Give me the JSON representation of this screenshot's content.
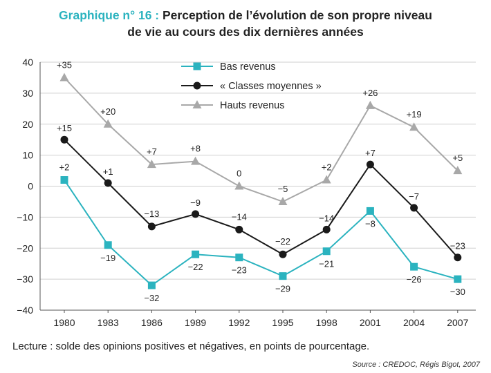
{
  "title": {
    "lead": "Graphique n° 16 :",
    "main": "Perception de l’évolution de son propre niveau",
    "line2": "de vie au cours des dix dernières années"
  },
  "note": "Lecture : solde des opinions positives et négatives, en points de pourcentage.",
  "source": "Source : CREDOC, Régis Bigot, 2007",
  "colors": {
    "bas": "#2bb3bf",
    "moyennes": "#1a1a1a",
    "hauts": "#a8a8a8",
    "grid": "#cfcfcf"
  },
  "chart_data": {
    "type": "line",
    "x": [
      "1980",
      "1983",
      "1986",
      "1989",
      "1992",
      "1995",
      "1998",
      "2001",
      "2004",
      "2007"
    ],
    "ylim": [
      -40,
      40
    ],
    "yticks": [
      "40",
      "30",
      "20",
      "10",
      "0",
      "−10",
      "−20",
      "−30",
      "−40"
    ],
    "grid": true,
    "legend": "top-center",
    "series": [
      {
        "name": "Bas revenus",
        "marker": "square",
        "values": [
          2,
          -19,
          -32,
          -22,
          -23,
          -29,
          -21,
          -8,
          -26,
          -30
        ],
        "labels": [
          "+2",
          "−19",
          "−32",
          "−22",
          "−23",
          "−29",
          "−21",
          "−8",
          "−26",
          "−30"
        ]
      },
      {
        "name": "« Classes moyennes »",
        "marker": "circle",
        "values": [
          15,
          1,
          -13,
          -9,
          -14,
          -22,
          -14,
          7,
          -7,
          -23
        ],
        "labels": [
          "+15",
          "+1",
          "−13",
          "−9",
          "−14",
          "−22",
          "−14",
          "+7",
          "−7",
          "−23"
        ]
      },
      {
        "name": "Hauts revenus",
        "marker": "triangle",
        "values": [
          35,
          20,
          7,
          8,
          0,
          -5,
          2,
          26,
          19,
          5
        ],
        "labels": [
          "+35",
          "+20",
          "+7",
          "+8",
          "0",
          "−5",
          "+2",
          "+26",
          "+19",
          "+5"
        ]
      }
    ]
  }
}
